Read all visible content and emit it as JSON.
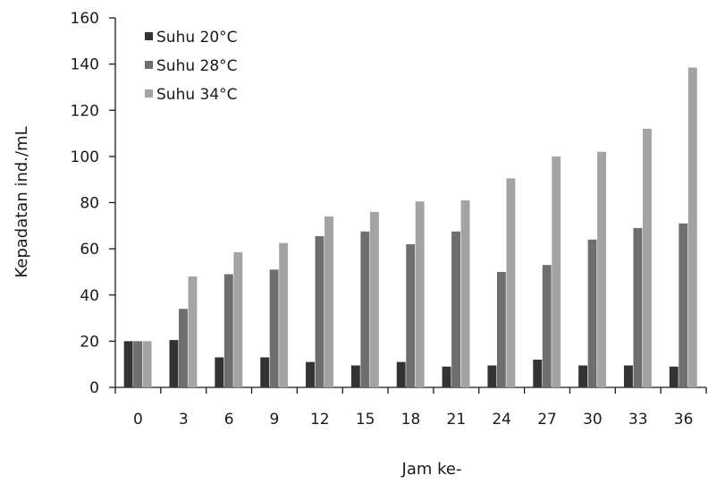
{
  "chart_data": {
    "type": "bar",
    "categories": [
      "0",
      "3",
      "6",
      "9",
      "12",
      "15",
      "18",
      "21",
      "24",
      "27",
      "30",
      "33",
      "36"
    ],
    "series": [
      {
        "name": "Suhu 20°C",
        "color": "#333333",
        "values": [
          20,
          20.5,
          13,
          13,
          11,
          9.5,
          11,
          9,
          9.5,
          12,
          9.5,
          9.5,
          9
        ]
      },
      {
        "name": "Suhu 28°C",
        "color": "#6e6e6e",
        "values": [
          20,
          34,
          49,
          51,
          65.5,
          67.5,
          62,
          67.5,
          50,
          53,
          64,
          69,
          71
        ]
      },
      {
        "name": "Suhu 34°C",
        "color": "#a3a3a3",
        "values": [
          20,
          48,
          58.5,
          62.5,
          74,
          76,
          80.5,
          81,
          90.5,
          100,
          102,
          112,
          138.5
        ]
      }
    ],
    "xlabel": "Jam ke-",
    "ylabel": "Kepadatan ind./mL",
    "ylim": [
      0,
      160
    ],
    "yticks": [
      "0",
      "20",
      "40",
      "60",
      "80",
      "100",
      "120",
      "140",
      "160"
    ],
    "grid": false,
    "legend_position": "top-left"
  }
}
